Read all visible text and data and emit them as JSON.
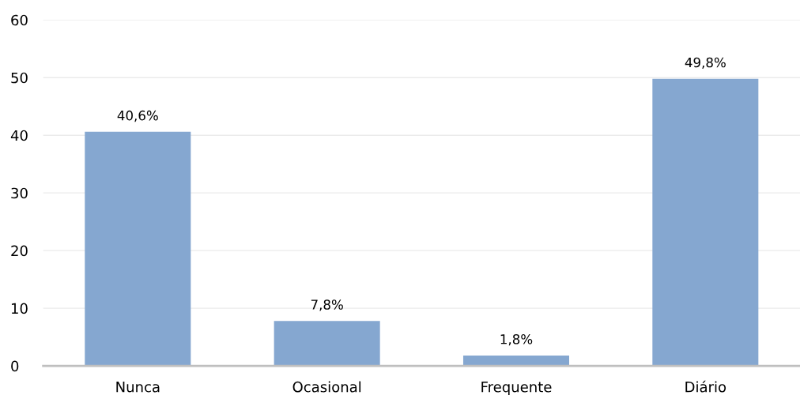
{
  "chart_data": {
    "type": "bar",
    "categories": [
      "Nunca",
      "Ocasional",
      "Frequente",
      "Diário"
    ],
    "values": [
      40.6,
      7.8,
      1.8,
      49.8
    ],
    "value_labels": [
      "40,6%",
      "7,8%",
      "1,8%",
      "49,8%"
    ],
    "color": "#85a7d0",
    "ylim": [
      0,
      60
    ],
    "yticks": [
      0,
      10,
      20,
      30,
      40,
      50,
      60
    ],
    "grid": "y",
    "legend": false
  }
}
